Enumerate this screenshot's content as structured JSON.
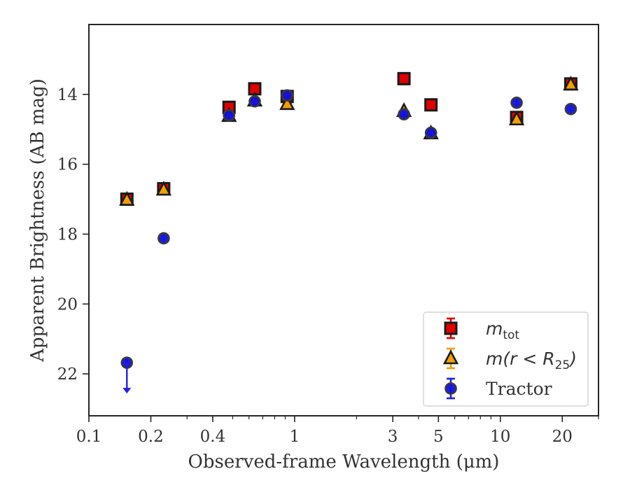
{
  "chart_data": {
    "type": "scatter",
    "xlabel": "Observed-frame Wavelength (μm)",
    "ylabel": "Apparent Brightness (AB mag)",
    "xscale": "log",
    "xlim": [
      0.1,
      30
    ],
    "ylim": [
      23.2,
      12.0
    ],
    "y_inverted": true,
    "grid": false,
    "legend_position": "lower right",
    "xticks": [
      {
        "value": 0.1,
        "label": "0.1"
      },
      {
        "value": 0.2,
        "label": "0.2"
      },
      {
        "value": 0.4,
        "label": "0.4"
      },
      {
        "value": 1,
        "label": "1"
      },
      {
        "value": 3,
        "label": "3"
      },
      {
        "value": 5,
        "label": "5"
      },
      {
        "value": 10,
        "label": "10"
      },
      {
        "value": 20,
        "label": "20"
      }
    ],
    "yticks": [
      {
        "value": 14,
        "label": "14"
      },
      {
        "value": 16,
        "label": "16"
      },
      {
        "value": 18,
        "label": "18"
      },
      {
        "value": 20,
        "label": "20"
      },
      {
        "value": 22,
        "label": "22"
      }
    ],
    "series": [
      {
        "name_main": "m",
        "name_sub": "tot",
        "name_tail": "",
        "marker": "square",
        "color": "#e00000",
        "errcolor": "#e00000",
        "points": [
          {
            "x": 0.153,
            "y": 17.0
          },
          {
            "x": 0.231,
            "y": 16.7
          },
          {
            "x": 0.48,
            "y": 14.37
          },
          {
            "x": 0.64,
            "y": 13.84
          },
          {
            "x": 0.92,
            "y": 14.06
          },
          {
            "x": 3.4,
            "y": 13.55
          },
          {
            "x": 4.6,
            "y": 14.3
          },
          {
            "x": 12.0,
            "y": 14.66
          },
          {
            "x": 22.0,
            "y": 13.7
          }
        ]
      },
      {
        "name_main": "m(r < R",
        "name_sub": "25",
        "name_tail": ")",
        "marker": "triangle",
        "color": "#f0a000",
        "errcolor": "#f0a000",
        "points": [
          {
            "x": 0.153,
            "y": 17.02
          },
          {
            "x": 0.231,
            "y": 16.73
          },
          {
            "x": 0.48,
            "y": 14.62
          },
          {
            "x": 0.64,
            "y": 14.18
          },
          {
            "x": 0.92,
            "y": 14.28
          },
          {
            "x": 3.4,
            "y": 14.48
          },
          {
            "x": 4.6,
            "y": 15.12
          },
          {
            "x": 12.0,
            "y": 14.72
          },
          {
            "x": 22.0,
            "y": 13.72
          }
        ]
      },
      {
        "name_main": "Tractor",
        "name_sub": "",
        "name_tail": "",
        "marker": "circle",
        "color": "#1010e0",
        "errcolor": "#2020e8",
        "points": [
          {
            "x": 0.153,
            "y": 21.68,
            "upper_limit": true
          },
          {
            "x": 0.231,
            "y": 18.12
          },
          {
            "x": 0.48,
            "y": 14.6
          },
          {
            "x": 0.64,
            "y": 14.2
          },
          {
            "x": 0.92,
            "y": 14.03
          },
          {
            "x": 3.4,
            "y": 14.57
          },
          {
            "x": 4.6,
            "y": 15.1
          },
          {
            "x": 12.0,
            "y": 14.24
          },
          {
            "x": 22.0,
            "y": 14.42
          }
        ]
      }
    ]
  }
}
